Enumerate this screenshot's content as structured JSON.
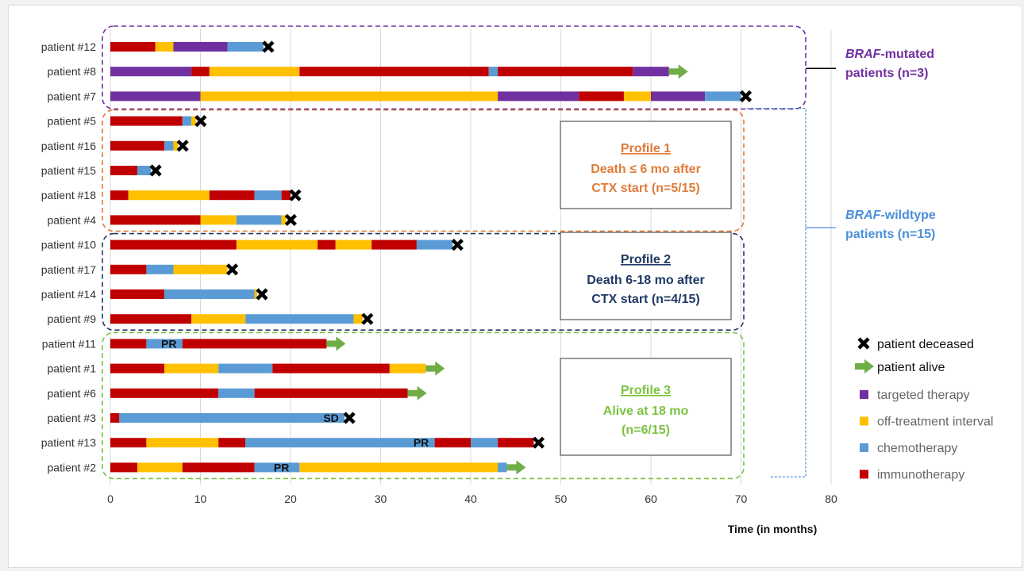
{
  "chart_data": {
    "type": "bar",
    "subtype": "swimmer-plot",
    "xlabel": "Time (in months)",
    "xlim": [
      0,
      80
    ],
    "xticks": [
      0,
      10,
      20,
      30,
      40,
      50,
      60,
      70,
      80
    ],
    "grid": "vertical",
    "colors": {
      "targeted therapy": "#7030a0",
      "off-treatment interval": "#ffc000",
      "chemotherapy": "#5b9bd5",
      "immunotherapy": "#c00000",
      "alive_arrow": "#70ad47",
      "mutated": "#7030a0",
      "wildtype": "#4a90d9",
      "profile1": "#e07b39",
      "profile2": "#1f3864",
      "profile3": "#7dc243"
    },
    "legend": {
      "placement": "right",
      "markers": [
        {
          "name": "patient deceased",
          "icon": "cross-icon"
        },
        {
          "name": "patient alive",
          "icon": "arrow-icon"
        }
      ],
      "treatments": [
        {
          "name": "targeted therapy",
          "color": "#7030a0"
        },
        {
          "name": "off-treatment interval",
          "color": "#ffc000"
        },
        {
          "name": "chemotherapy",
          "color": "#5b9bd5"
        },
        {
          "name": "immunotherapy",
          "color": "#c00000"
        }
      ]
    },
    "patients": [
      {
        "label": "patient #12",
        "end": "deceased",
        "segments": [
          [
            "immunotherapy",
            0,
            5
          ],
          [
            "off-treatment interval",
            5,
            7
          ],
          [
            "targeted therapy",
            7,
            13
          ],
          [
            "chemotherapy",
            13,
            17
          ]
        ]
      },
      {
        "label": "patient #8",
        "end": "alive",
        "segments": [
          [
            "targeted therapy",
            0,
            9
          ],
          [
            "immunotherapy",
            9,
            11
          ],
          [
            "off-treatment interval",
            11,
            21
          ],
          [
            "immunotherapy",
            21,
            42
          ],
          [
            "chemotherapy",
            42,
            43
          ],
          [
            "immunotherapy",
            43,
            58
          ],
          [
            "targeted therapy",
            58,
            62
          ]
        ]
      },
      {
        "label": "patient #7",
        "end": "deceased",
        "segments": [
          [
            "targeted therapy",
            0,
            10
          ],
          [
            "off-treatment interval",
            10,
            43
          ],
          [
            "targeted therapy",
            43,
            52
          ],
          [
            "immunotherapy",
            52,
            57
          ],
          [
            "off-treatment interval",
            57,
            60
          ],
          [
            "targeted therapy",
            60,
            66
          ],
          [
            "chemotherapy",
            66,
            70
          ]
        ]
      },
      {
        "label": "patient #5",
        "end": "deceased",
        "segments": [
          [
            "immunotherapy",
            0,
            8
          ],
          [
            "chemotherapy",
            8,
            9
          ],
          [
            "off-treatment interval",
            9,
            9.5
          ]
        ]
      },
      {
        "label": "patient #16",
        "end": "deceased",
        "segments": [
          [
            "immunotherapy",
            0,
            6
          ],
          [
            "chemotherapy",
            6,
            7
          ],
          [
            "off-treatment interval",
            7,
            7.5
          ]
        ]
      },
      {
        "label": "patient #15",
        "end": "deceased",
        "segments": [
          [
            "immunotherapy",
            0,
            3
          ],
          [
            "chemotherapy",
            3,
            4.5
          ]
        ]
      },
      {
        "label": "patient #18",
        "end": "deceased",
        "segments": [
          [
            "immunotherapy",
            0,
            2
          ],
          [
            "off-treatment interval",
            2,
            11
          ],
          [
            "immunotherapy",
            11,
            16
          ],
          [
            "chemotherapy",
            16,
            19
          ],
          [
            "immunotherapy",
            19,
            20
          ]
        ]
      },
      {
        "label": "patient #4",
        "end": "deceased",
        "segments": [
          [
            "immunotherapy",
            0,
            10
          ],
          [
            "off-treatment interval",
            10,
            14
          ],
          [
            "chemotherapy",
            14,
            19
          ],
          [
            "off-treatment interval",
            19,
            19.5
          ]
        ]
      },
      {
        "label": "patient #10",
        "end": "deceased",
        "segments": [
          [
            "immunotherapy",
            0,
            14
          ],
          [
            "off-treatment interval",
            14,
            23
          ],
          [
            "immunotherapy",
            23,
            25
          ],
          [
            "off-treatment interval",
            25,
            29
          ],
          [
            "immunotherapy",
            29,
            34
          ],
          [
            "chemotherapy",
            34,
            38
          ]
        ]
      },
      {
        "label": "patient #17",
        "end": "deceased",
        "segments": [
          [
            "immunotherapy",
            0,
            4
          ],
          [
            "chemotherapy",
            4,
            7
          ],
          [
            "off-treatment interval",
            7,
            13
          ]
        ]
      },
      {
        "label": "patient #14",
        "end": "deceased",
        "segments": [
          [
            "immunotherapy",
            0,
            6
          ],
          [
            "chemotherapy",
            6,
            16
          ],
          [
            "off-treatment interval",
            16,
            16.3
          ]
        ]
      },
      {
        "label": "patient #9",
        "end": "deceased",
        "segments": [
          [
            "immunotherapy",
            0,
            9
          ],
          [
            "off-treatment interval",
            9,
            15
          ],
          [
            "chemotherapy",
            15,
            27
          ],
          [
            "off-treatment interval",
            27,
            28
          ]
        ]
      },
      {
        "label": "patient #11",
        "end": "alive",
        "segments": [
          [
            "immunotherapy",
            0,
            4
          ],
          [
            "chemotherapy",
            4,
            8
          ],
          [
            "immunotherapy",
            8,
            24
          ]
        ]
      },
      {
        "label": "patient #1",
        "end": "alive",
        "segments": [
          [
            "immunotherapy",
            0,
            6
          ],
          [
            "off-treatment interval",
            6,
            12
          ],
          [
            "chemotherapy",
            12,
            18
          ],
          [
            "immunotherapy",
            18,
            31
          ],
          [
            "off-treatment interval",
            31,
            35
          ]
        ]
      },
      {
        "label": "patient #6",
        "end": "alive",
        "segments": [
          [
            "immunotherapy",
            0,
            12
          ],
          [
            "chemotherapy",
            12,
            16
          ],
          [
            "immunotherapy",
            16,
            33
          ]
        ]
      },
      {
        "label": "patient #3",
        "end": "deceased",
        "segments": [
          [
            "immunotherapy",
            0,
            1
          ],
          [
            "chemotherapy",
            1,
            26
          ]
        ]
      },
      {
        "label": "patient #13",
        "end": "deceased",
        "segments": [
          [
            "immunotherapy",
            0,
            4
          ],
          [
            "off-treatment interval",
            4,
            12
          ],
          [
            "immunotherapy",
            12,
            15
          ],
          [
            "chemotherapy",
            15,
            36
          ],
          [
            "immunotherapy",
            36,
            40
          ],
          [
            "chemotherapy",
            40,
            43
          ],
          [
            "immunotherapy",
            43,
            47
          ]
        ]
      },
      {
        "label": "patient #2",
        "end": "alive",
        "segments": [
          [
            "immunotherapy",
            0,
            3
          ],
          [
            "off-treatment interval",
            3,
            8
          ],
          [
            "immunotherapy",
            8,
            16
          ],
          [
            "chemotherapy",
            16,
            21
          ],
          [
            "off-treatment interval",
            21,
            43
          ],
          [
            "chemotherapy",
            43,
            44
          ]
        ]
      }
    ],
    "response_labels": [
      {
        "patient": "patient #11",
        "text": "PR",
        "x": 6.5
      },
      {
        "patient": "patient #3",
        "text": "SD",
        "x": 24.5
      },
      {
        "patient": "patient #13",
        "text": "PR",
        "x": 34.5
      },
      {
        "patient": "patient #2",
        "text": "PR",
        "x": 19
      }
    ],
    "profiles": [
      {
        "title": "Profile 1",
        "lines": [
          "Death ≤ 6 mo after",
          "CTX start (n=5/15)"
        ],
        "color": "#e07b39",
        "rows": [
          3,
          7
        ]
      },
      {
        "title": "Profile 2",
        "lines": [
          "Death 6-18 mo after",
          "CTX start (n=4/15)"
        ],
        "color": "#1f3864",
        "rows": [
          8,
          11
        ]
      },
      {
        "title": "Profile 3",
        "lines": [
          "Alive at 18 mo",
          "(n=6/15)"
        ],
        "color": "#7dc243",
        "rows": [
          12,
          17
        ]
      }
    ],
    "groups": [
      {
        "lines": [
          "BRAF-mutated",
          "patients (n=3)"
        ],
        "italic_prefix": "BRAF",
        "color": "#7030a0",
        "rows": [
          0,
          2
        ]
      },
      {
        "lines": [
          "BRAF-wildtype",
          "patients (n=15)"
        ],
        "italic_prefix": "BRAF",
        "color": "#4a90d9",
        "rows": [
          3,
          17
        ]
      }
    ]
  }
}
